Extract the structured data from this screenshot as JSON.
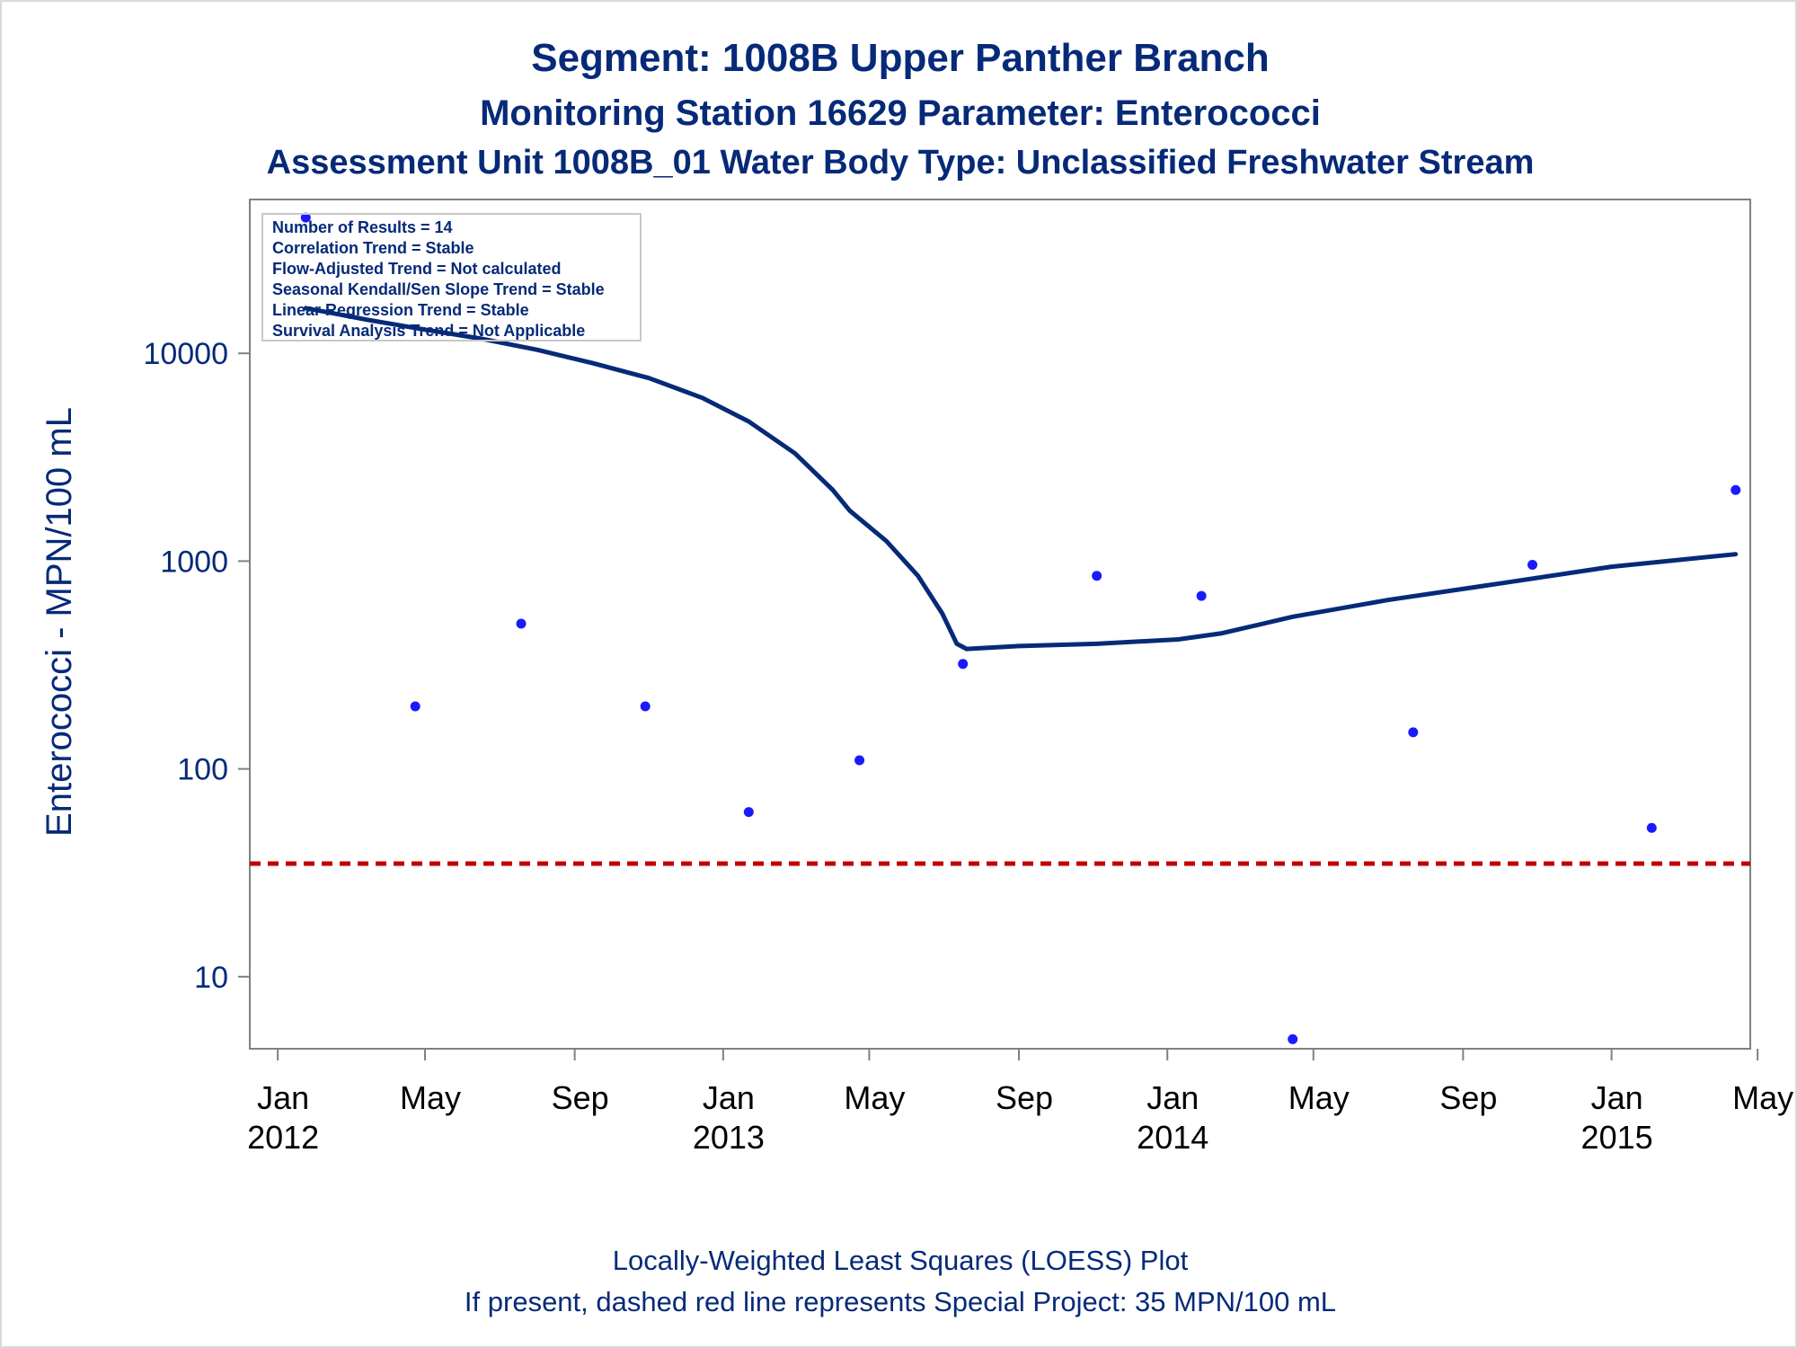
{
  "chart_data": {
    "type": "scatter",
    "title": "Segment: 1008B  Upper Panther Branch",
    "subtitle": "Monitoring Station 16629 Parameter: Enterococci",
    "subtitle2": "Assessment Unit 1008B_01   Water Body Type: Unclassified Freshwater Stream",
    "ylabel": "Enterococci - MPN/100 mL",
    "yscale": "log",
    "ylim": [
      4.5,
      55000
    ],
    "yticks": [
      {
        "value": 10,
        "label": "10"
      },
      {
        "value": 100,
        "label": "100"
      },
      {
        "value": 1000,
        "label": "1000"
      },
      {
        "value": 10000,
        "label": "10000"
      }
    ],
    "xlim": [
      "2011-12-09",
      "2015-04-25"
    ],
    "xticks": [
      {
        "date": "2012-01-01",
        "label": "Jan",
        "year": "2012"
      },
      {
        "date": "2012-05-01",
        "label": "May",
        "year": ""
      },
      {
        "date": "2012-09-01",
        "label": "Sep",
        "year": ""
      },
      {
        "date": "2013-01-01",
        "label": "Jan",
        "year": "2013"
      },
      {
        "date": "2013-05-01",
        "label": "May",
        "year": ""
      },
      {
        "date": "2013-09-01",
        "label": "Sep",
        "year": ""
      },
      {
        "date": "2014-01-01",
        "label": "Jan",
        "year": "2014"
      },
      {
        "date": "2014-05-01",
        "label": "May",
        "year": ""
      },
      {
        "date": "2014-09-01",
        "label": "Sep",
        "year": ""
      },
      {
        "date": "2015-01-01",
        "label": "Jan",
        "year": "2015"
      },
      {
        "date": "2015-05-01",
        "label": "May",
        "year": ""
      }
    ],
    "points": [
      {
        "date": "2012-01-24",
        "value": 45000
      },
      {
        "date": "2012-04-23",
        "value": 200
      },
      {
        "date": "2012-07-19",
        "value": 500
      },
      {
        "date": "2012-10-29",
        "value": 200
      },
      {
        "date": "2013-01-22",
        "value": 62
      },
      {
        "date": "2013-04-23",
        "value": 110
      },
      {
        "date": "2013-07-17",
        "value": 320
      },
      {
        "date": "2013-11-04",
        "value": 850
      },
      {
        "date": "2014-01-29",
        "value": 680
      },
      {
        "date": "2014-04-14",
        "value": 5
      },
      {
        "date": "2014-07-22",
        "value": 150
      },
      {
        "date": "2014-10-28",
        "value": 960
      },
      {
        "date": "2015-02-03",
        "value": 52
      },
      {
        "date": "2015-04-13",
        "value": 2200
      }
    ],
    "loess": [
      {
        "date": "2012-01-24",
        "value": 16500
      },
      {
        "date": "2012-03-15",
        "value": 14500
      },
      {
        "date": "2012-05-01",
        "value": 13000
      },
      {
        "date": "2012-06-15",
        "value": 11800
      },
      {
        "date": "2012-08-01",
        "value": 10400
      },
      {
        "date": "2012-09-15",
        "value": 9000
      },
      {
        "date": "2012-11-01",
        "value": 7600
      },
      {
        "date": "2012-12-15",
        "value": 6100
      },
      {
        "date": "2013-01-22",
        "value": 4700
      },
      {
        "date": "2013-03-01",
        "value": 3300
      },
      {
        "date": "2013-04-01",
        "value": 2200
      },
      {
        "date": "2013-04-15",
        "value": 1750
      },
      {
        "date": "2013-05-15",
        "value": 1250
      },
      {
        "date": "2013-06-10",
        "value": 850
      },
      {
        "date": "2013-06-30",
        "value": 560
      },
      {
        "date": "2013-07-12",
        "value": 400
      },
      {
        "date": "2013-07-20",
        "value": 378
      },
      {
        "date": "2013-09-01",
        "value": 390
      },
      {
        "date": "2013-11-04",
        "value": 400
      },
      {
        "date": "2014-01-10",
        "value": 420
      },
      {
        "date": "2014-02-15",
        "value": 450
      },
      {
        "date": "2014-04-14",
        "value": 540
      },
      {
        "date": "2014-07-01",
        "value": 650
      },
      {
        "date": "2014-10-01",
        "value": 780
      },
      {
        "date": "2015-01-01",
        "value": 940
      },
      {
        "date": "2015-04-13",
        "value": 1080
      }
    ],
    "reference_line": {
      "value": 35,
      "style": "dashed",
      "color": "#c00000"
    },
    "stats_box": [
      "Number of Results = 14",
      "Correlation Trend = Stable",
      "Flow-Adjusted Trend = Not calculated",
      "Seasonal Kendall/Sen Slope Trend = Stable",
      "Linear Regression Trend = Stable",
      "Survival Analysis Trend = Not Applicable"
    ],
    "footnotes": [
      "Locally-Weighted Least Squares (LOESS) Plot",
      "If present, dashed red line represents Special Project: 35 MPN/100 mL"
    ],
    "grid": false,
    "legend": "none",
    "colors": {
      "title": "#062a78",
      "points": "#1a1aff",
      "loess": "#062a78",
      "reference": "#c00000",
      "axis": "#808080"
    }
  }
}
